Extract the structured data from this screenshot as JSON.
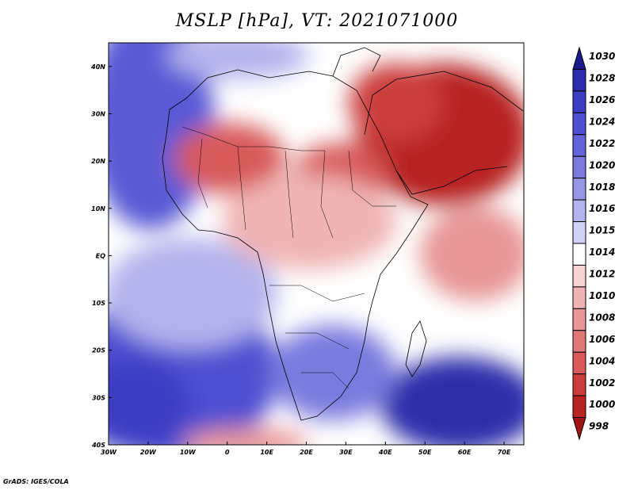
{
  "title": "MSLP [hPa], VT: 2021071000",
  "credit": "GrADS: IGES/COLA",
  "map": {
    "projection": "latlon",
    "lon_range": [
      -30,
      75
    ],
    "lat_range": [
      -40,
      45
    ],
    "field": "Mean Sea Level Pressure",
    "coastlines": true,
    "country_borders": true
  },
  "axes": {
    "x_ticks": [
      "30W",
      "20W",
      "10W",
      "0",
      "10E",
      "20E",
      "30E",
      "40E",
      "50E",
      "60E",
      "70E"
    ],
    "y_ticks": [
      "40N",
      "30N",
      "20N",
      "10N",
      "EQ",
      "10S",
      "20S",
      "30S",
      "40S"
    ]
  },
  "colorbar": {
    "labels": [
      "1030",
      "1028",
      "1026",
      "1024",
      "1022",
      "1020",
      "1018",
      "1016",
      "1015",
      "1014",
      "1012",
      "1010",
      "1008",
      "1006",
      "1004",
      "1002",
      "1000",
      "998"
    ],
    "colors": [
      "#1a1a8c",
      "#2d2dab",
      "#3d3dc4",
      "#5050d2",
      "#6464da",
      "#7a7adf",
      "#9696e6",
      "#b4b4ee",
      "#d2d2f6",
      "#ffffff",
      "#f6d2d2",
      "#f0b4b4",
      "#e89696",
      "#e07878",
      "#d85a5a",
      "#cc3c3c",
      "#b82424",
      "#a01414"
    ]
  }
}
